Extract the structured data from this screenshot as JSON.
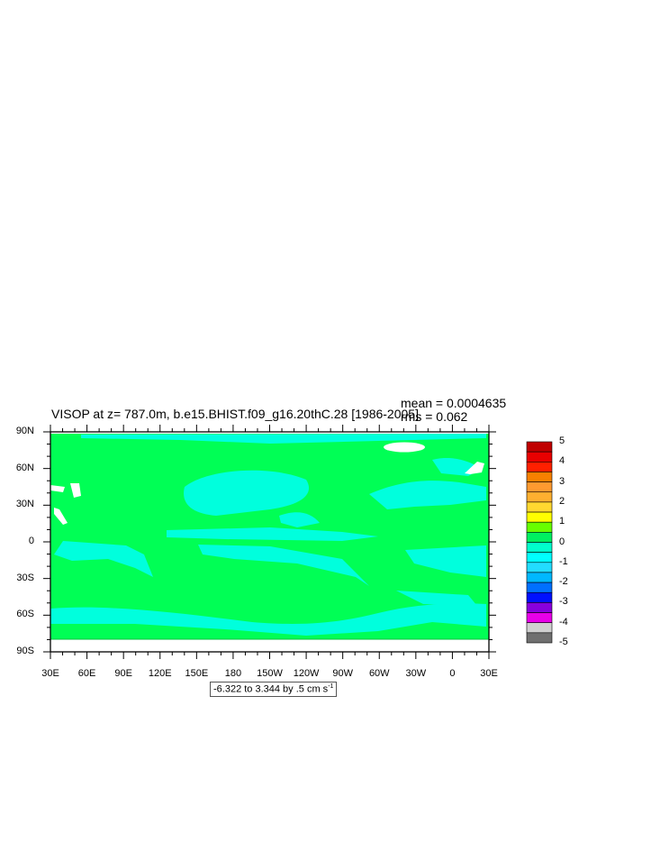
{
  "title": "VISOP at z= 787.0m, b.e15.BHIST.f09_g16.20thC.28 [1986-2005]",
  "stats": {
    "mean": "mean = 0.0004635",
    "rms": "rms = 0.062"
  },
  "lat_labels": [
    "90N",
    "60N",
    "30N",
    "0",
    "30S",
    "60S",
    "90S"
  ],
  "lon_labels": [
    "30E",
    "60E",
    "90E",
    "120E",
    "150E",
    "180",
    "150W",
    "120W",
    "90W",
    "60W",
    "30W",
    "0",
    "30E"
  ],
  "contour_info": {
    "text": "-6.322 to 3.344 by .5 cm s",
    "unit_exp": "-1"
  },
  "colorbar": {
    "labels": [
      "5",
      "4",
      "3",
      "2",
      "1",
      "0",
      "-1",
      "-2",
      "-3",
      "-4",
      "-5"
    ],
    "colors": [
      "#c00000",
      "#e80000",
      "#ff2000",
      "#f78000",
      "#ff9a30",
      "#ffb030",
      "#ffd830",
      "#ffff00",
      "#66ff00",
      "#00f060",
      "#00ffcc",
      "#00ffff",
      "#22ddff",
      "#00b8ff",
      "#0070ff",
      "#0010ff",
      "#8800dd",
      "#e800e8",
      "#d0d0d0",
      "#707070"
    ]
  },
  "map_colors": {
    "zero_to_half": "#00ff55",
    "minus_half_to_zero": "#00ffdd",
    "missing": "#ffffff"
  }
}
